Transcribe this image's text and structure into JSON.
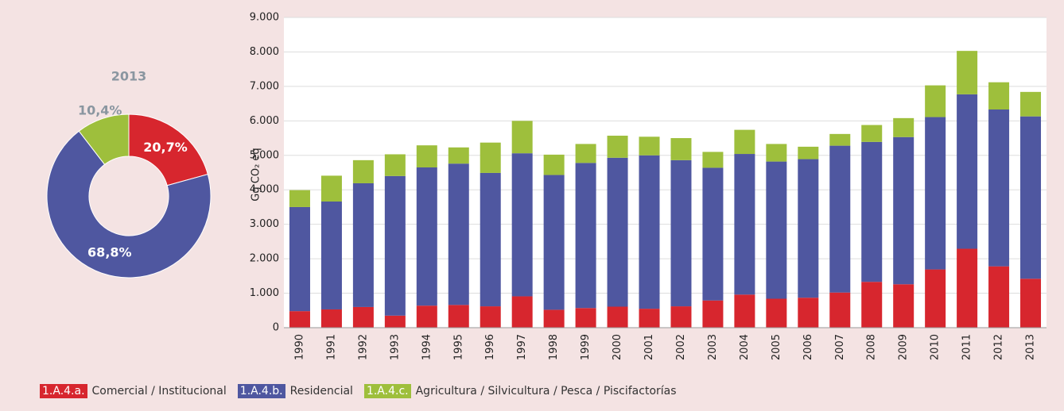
{
  "chart_data": [
    {
      "type": "pie",
      "title": "2013",
      "donut": true,
      "values": [
        20.7,
        68.8,
        10.4
      ],
      "value_labels": [
        "20,7%",
        "68,8%",
        "10,4%"
      ],
      "colors": [
        "#d7262e",
        "#4f57a0",
        "#9ebf3c"
      ]
    },
    {
      "type": "stacked_bar",
      "y_label": "Gg CO₂ eq",
      "categories": [
        "1990",
        "1991",
        "1992",
        "1993",
        "1994",
        "1995",
        "1996",
        "1997",
        "1998",
        "1999",
        "2000",
        "2001",
        "2002",
        "2003",
        "2004",
        "2005",
        "2006",
        "2007",
        "2008",
        "2009",
        "2010",
        "2011",
        "2012",
        "2013"
      ],
      "series": [
        {
          "code": "1.A.4.a.",
          "name": "Comercial / Institucional",
          "color": "#d7262e",
          "values": [
            480,
            530,
            600,
            350,
            640,
            660,
            620,
            910,
            520,
            570,
            610,
            550,
            620,
            790,
            960,
            840,
            870,
            1020,
            1330,
            1260,
            1690,
            2290,
            1780,
            1420
          ]
        },
        {
          "code": "1.A.4.b.",
          "name": "Residencial",
          "color": "#4f57a0",
          "values": [
            3020,
            3130,
            3590,
            4050,
            4010,
            4100,
            3870,
            4150,
            3910,
            4210,
            4320,
            4450,
            4240,
            3850,
            4080,
            3980,
            4020,
            4260,
            4060,
            4270,
            4420,
            4480,
            4550,
            4710
          ]
        },
        {
          "code": "1.A.4.c.",
          "name": "Agricultura / Silvicultura / Pesca / Piscifactorías",
          "color": "#9ebf3c",
          "values": [
            490,
            750,
            670,
            630,
            640,
            470,
            880,
            940,
            590,
            550,
            640,
            540,
            640,
            460,
            700,
            510,
            360,
            340,
            490,
            550,
            920,
            1260,
            790,
            710
          ]
        }
      ],
      "ylim": [
        0,
        9000
      ],
      "yticks": [
        0,
        {
          "value": 1000,
          "label": "1.000"
        },
        {
          "value": 2000,
          "label": "2.000"
        },
        {
          "value": 3000,
          "label": "3.000"
        },
        {
          "value": 4000,
          "label": "4.000"
        },
        {
          "value": 5000,
          "label": "5.000"
        },
        {
          "value": 6000,
          "label": "6.000"
        },
        {
          "value": 7000,
          "label": "7.000"
        },
        {
          "value": 8000,
          "label": "8.000"
        },
        {
          "value": 9000,
          "label": "9.000"
        }
      ],
      "grid": true
    }
  ]
}
